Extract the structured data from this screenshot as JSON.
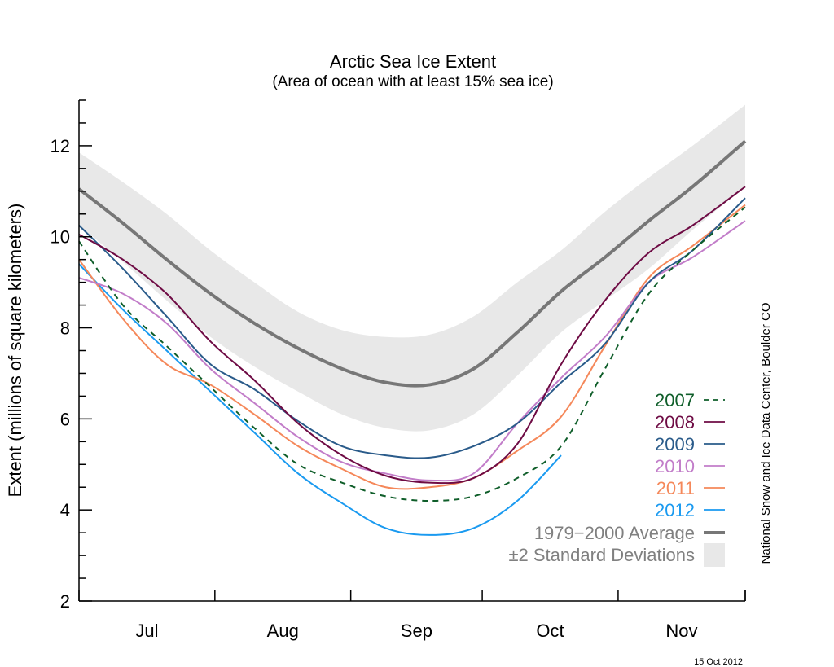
{
  "chart_data": {
    "type": "line",
    "title": "Arctic Sea Ice Extent",
    "subtitle": "(Area of ocean with at least 15% sea ice)",
    "xlabel": "",
    "ylabel": "Extent (millions of square kilometers)",
    "ylim": [
      2,
      13
    ],
    "yticks": [
      2,
      4,
      6,
      8,
      10,
      12
    ],
    "y_minor_step": 0.5,
    "x_unit": "days since 1 Jul",
    "xlim": [
      0,
      152
    ],
    "month_boundaries": [
      0,
      31,
      62,
      92,
      123,
      152
    ],
    "month_labels": [
      "Jul",
      "Aug",
      "Sep",
      "Oct",
      "Nov"
    ],
    "grid": false,
    "legend_position": "lower-right",
    "credit": "National Snow and Ice Data Center, Boulder CO",
    "date_stamp": "15 Oct 2012",
    "x": [
      0,
      10,
      20,
      30,
      40,
      50,
      60,
      70,
      80,
      90,
      100,
      110,
      120,
      130,
      140,
      152
    ],
    "average": {
      "name": "1979−2000 Average",
      "color": "#777777",
      "values": [
        11.05,
        10.3,
        9.5,
        8.75,
        8.1,
        7.55,
        7.1,
        6.8,
        6.75,
        7.1,
        7.9,
        8.8,
        9.55,
        10.35,
        11.1,
        12.1
      ]
    },
    "std_band": {
      "name": "±2 Standard Deviations",
      "color": "#e8e8e8",
      "upper": [
        11.85,
        11.2,
        10.5,
        9.7,
        9.0,
        8.35,
        7.95,
        7.8,
        7.85,
        8.25,
        9.0,
        9.7,
        10.55,
        11.3,
        12.0,
        12.9
      ],
      "lower": [
        10.25,
        9.45,
        8.6,
        7.8,
        7.15,
        6.6,
        6.1,
        5.8,
        5.75,
        6.1,
        6.95,
        7.9,
        8.6,
        9.3,
        10.15,
        11.1
      ]
    },
    "series": [
      {
        "name": "2012",
        "color": "#1a9af0",
        "dash": false,
        "values": [
          9.4,
          8.4,
          7.5,
          6.6,
          5.7,
          4.8,
          4.15,
          3.6,
          3.45,
          3.6,
          4.2,
          5.2,
          null,
          null,
          null,
          null
        ]
      },
      {
        "name": "2011",
        "color": "#f5885a",
        "dash": false,
        "values": [
          9.5,
          8.2,
          7.2,
          6.75,
          6.1,
          5.4,
          4.9,
          4.5,
          4.5,
          4.7,
          5.3,
          6.05,
          7.6,
          9.1,
          9.8,
          10.7
        ]
      },
      {
        "name": "2010",
        "color": "#c27dc9",
        "dash": false,
        "values": [
          9.1,
          8.75,
          8.1,
          7.1,
          6.35,
          5.6,
          5.05,
          4.8,
          4.65,
          4.8,
          5.9,
          6.9,
          7.8,
          9.0,
          9.55,
          10.35
        ]
      },
      {
        "name": "2009",
        "color": "#2a5b8a",
        "dash": false,
        "values": [
          10.25,
          9.3,
          8.25,
          7.2,
          6.65,
          5.95,
          5.4,
          5.2,
          5.15,
          5.4,
          5.9,
          6.8,
          7.65,
          9.0,
          9.7,
          10.85
        ]
      },
      {
        "name": "2008",
        "color": "#6e0b44",
        "dash": false,
        "values": [
          10.05,
          9.5,
          8.75,
          7.7,
          6.85,
          5.9,
          5.2,
          4.75,
          4.6,
          4.7,
          5.45,
          7.2,
          8.6,
          9.65,
          10.25,
          11.1
        ]
      },
      {
        "name": "2007",
        "color": "#0f5e2a",
        "dash": true,
        "values": [
          9.9,
          8.5,
          7.6,
          6.7,
          5.8,
          5.0,
          4.6,
          4.3,
          4.2,
          4.3,
          4.7,
          5.4,
          7.1,
          8.75,
          9.7,
          10.65
        ]
      }
    ]
  }
}
